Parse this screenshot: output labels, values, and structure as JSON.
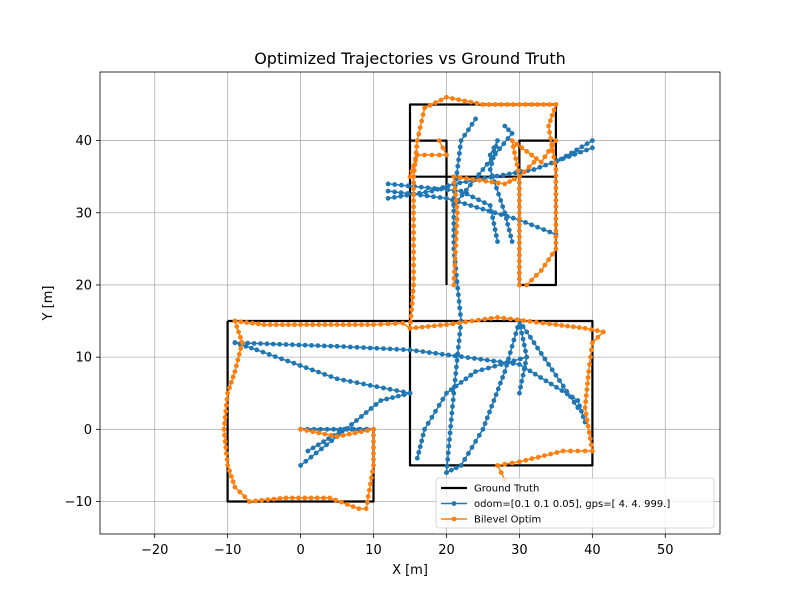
{
  "chart_data": {
    "type": "line",
    "title": "Optimized Trajectories vs Ground Truth",
    "xlabel": "X [m]",
    "ylabel": "Y [m]",
    "xlim": [
      -27.5,
      57.5
    ],
    "ylim": [
      -14.5,
      49.5
    ],
    "grid": true,
    "legend_position": "lower-right",
    "x_ticks": [
      -20,
      -10,
      0,
      10,
      20,
      30,
      40,
      50
    ],
    "y_ticks": [
      -10,
      0,
      10,
      20,
      30,
      40
    ],
    "x_tick_labels": [
      "−20",
      "−10",
      "0",
      "10",
      "20",
      "30",
      "40",
      "50"
    ],
    "y_tick_labels": [
      "−10",
      "0",
      "10",
      "20",
      "30",
      "40"
    ],
    "series": [
      {
        "name": "Ground Truth",
        "color": "#000000",
        "marker": "none",
        "segments": [
          [
            [
              -10,
              15
            ],
            [
              40,
              15
            ],
            [
              40,
              -5
            ],
            [
              15,
              -5
            ],
            [
              15,
              45
            ],
            [
              35,
              45
            ],
            [
              35,
              20
            ],
            [
              30,
              20
            ],
            [
              30,
              40
            ],
            [
              35,
              40
            ]
          ],
          [
            [
              -10,
              15
            ],
            [
              -10,
              -10
            ],
            [
              10,
              -10
            ],
            [
              10,
              0
            ],
            [
              0,
              0
            ]
          ],
          [
            [
              15,
              35
            ],
            [
              35,
              35
            ]
          ],
          [
            [
              15,
              40
            ],
            [
              20,
              40
            ],
            [
              20,
              20
            ]
          ]
        ]
      },
      {
        "name": "odom=[0.1  0.1  0.05], gps=[  4.   4. 999.]",
        "color": "#1f77b4",
        "marker": "circle",
        "segments": [
          [
            [
              0,
              -5
            ],
            [
              5,
              -1
            ],
            [
              11,
              4
            ],
            [
              15,
              5
            ]
          ],
          [
            [
              1,
              -3
            ],
            [
              6,
              0
            ],
            [
              10,
              0
            ]
          ],
          [
            [
              0,
              0
            ],
            [
              10,
              0
            ]
          ],
          [
            [
              15,
              5
            ],
            [
              5,
              7
            ],
            [
              -6,
              11
            ],
            [
              -9,
              12
            ]
          ],
          [
            [
              -9,
              12
            ],
            [
              5,
              11.5
            ],
            [
              15,
              11
            ],
            [
              30,
              9
            ],
            [
              38,
              4
            ],
            [
              39,
              1
            ]
          ],
          [
            [
              30,
              15
            ],
            [
              38,
              3
            ]
          ],
          [
            [
              30,
              15
            ],
            [
              28,
              8
            ],
            [
              25,
              0
            ],
            [
              22,
              -5
            ],
            [
              20,
              -6
            ]
          ],
          [
            [
              30,
              15
            ],
            [
              31,
              10
            ],
            [
              30,
              5
            ]
          ],
          [
            [
              20,
              -6
            ],
            [
              21,
              5
            ],
            [
              22,
              15
            ],
            [
              21,
              25
            ],
            [
              21,
              32
            ],
            [
              22,
              40
            ],
            [
              24,
              43
            ]
          ],
          [
            [
              31,
              10
            ],
            [
              24,
              8
            ],
            [
              20,
              5
            ],
            [
              17,
              0
            ],
            [
              16,
              -4
            ]
          ],
          [
            [
              12,
              32
            ],
            [
              18,
              33
            ],
            [
              21,
              34
            ],
            [
              32,
              36
            ],
            [
              40,
              39
            ]
          ],
          [
            [
              12,
              33
            ],
            [
              20,
              32
            ],
            [
              30,
              29
            ],
            [
              35,
              27
            ]
          ],
          [
            [
              12,
              34
            ],
            [
              22,
              33
            ],
            [
              26,
              31
            ],
            [
              27,
              26
            ]
          ],
          [
            [
              26,
              38
            ],
            [
              27,
              40
            ],
            [
              26,
              36
            ],
            [
              28,
              30
            ],
            [
              29,
              26
            ]
          ],
          [
            [
              21,
              31
            ],
            [
              29,
              41
            ],
            [
              28,
              42
            ]
          ],
          [
            [
              35,
              37
            ],
            [
              40,
              40
            ]
          ]
        ]
      },
      {
        "name": "Bilevel Optim",
        "color": "#ff7f0e",
        "marker": "circle",
        "segments": [
          [
            [
              10,
              0
            ],
            [
              10,
              -5
            ],
            [
              9,
              -11
            ],
            [
              8,
              -11
            ],
            [
              4,
              -9.5
            ],
            [
              -2,
              -9.5
            ],
            [
              -7,
              -10
            ],
            [
              -9,
              -8
            ],
            [
              -10,
              -5
            ],
            [
              -10.5,
              0
            ],
            [
              -10,
              5
            ],
            [
              -9,
              8
            ],
            [
              -8,
              12
            ],
            [
              -9,
              15
            ],
            [
              -5,
              14.5
            ],
            [
              0,
              14.5
            ],
            [
              5,
              14.5
            ],
            [
              10,
              14.5
            ],
            [
              14,
              14.7
            ],
            [
              15,
              14
            ],
            [
              15.5,
              20
            ],
            [
              15.5,
              30
            ],
            [
              15.5,
              35
            ],
            [
              16,
              40
            ],
            [
              17,
              44.5
            ],
            [
              20,
              46
            ],
            [
              25,
              45
            ],
            [
              30,
              45
            ],
            [
              35,
              45
            ]
          ],
          [
            [
              0,
              0
            ],
            [
              5,
              -1
            ],
            [
              10,
              0
            ]
          ],
          [
            [
              15,
              14
            ],
            [
              20,
              14.5
            ],
            [
              27,
              15.5
            ],
            [
              35,
              14.5
            ],
            [
              39,
              14
            ],
            [
              41.5,
              13.5
            ]
          ],
          [
            [
              41.5,
              13.5
            ],
            [
              40,
              12
            ],
            [
              39.5,
              8
            ],
            [
              39,
              3
            ],
            [
              40,
              -3
            ],
            [
              36,
              -3
            ],
            [
              30,
              -4.5
            ],
            [
              27,
              -5
            ],
            [
              28,
              -7
            ]
          ],
          [
            [
              35,
              45
            ],
            [
              34,
              42
            ],
            [
              35,
              36
            ],
            [
              35,
              30
            ],
            [
              35,
              25
            ],
            [
              33,
              22
            ],
            [
              31,
              20
            ]
          ],
          [
            [
              30,
              20
            ],
            [
              30,
              25
            ],
            [
              30,
              30
            ],
            [
              30,
              35
            ],
            [
              29,
              40
            ],
            [
              33,
              37
            ],
            [
              35,
              40
            ]
          ],
          [
            [
              21,
              20
            ],
            [
              21.5,
              30
            ],
            [
              21,
              35
            ],
            [
              28,
              34
            ],
            [
              30,
              35
            ],
            [
              32,
              37
            ]
          ],
          [
            [
              15,
              35
            ],
            [
              16,
              38
            ],
            [
              20,
              38
            ],
            [
              19,
              40
            ]
          ]
        ]
      }
    ]
  }
}
